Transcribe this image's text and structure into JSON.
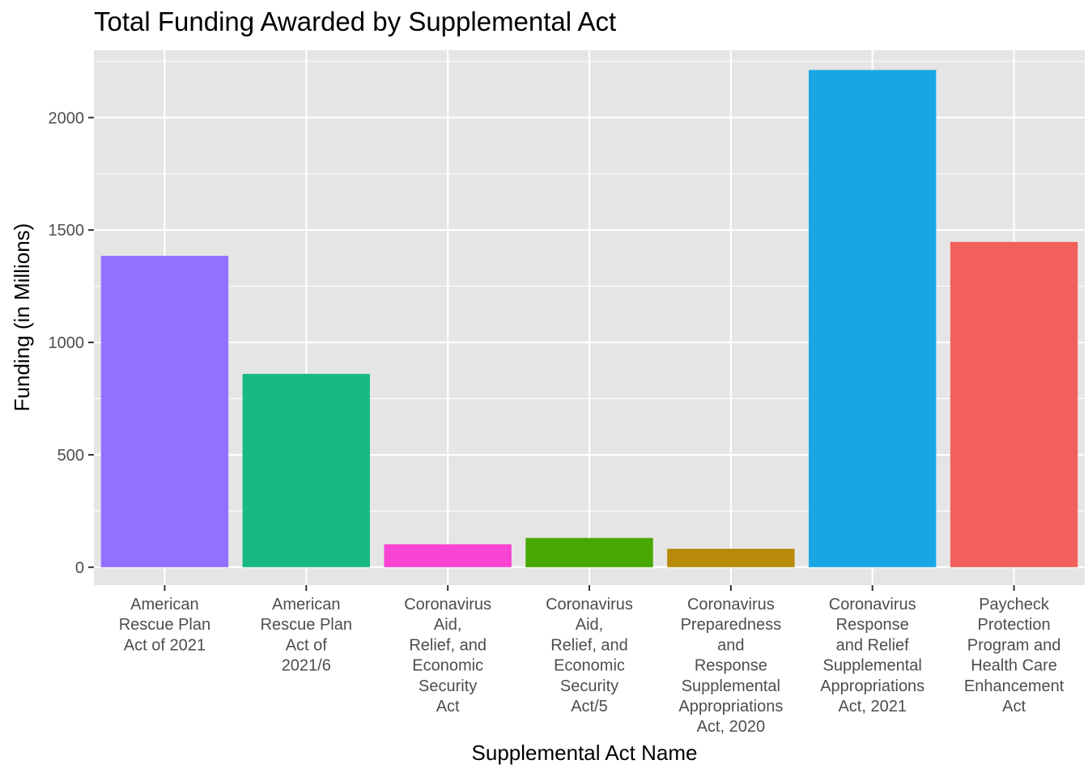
{
  "chart_data": {
    "type": "bar",
    "title": "Total Funding Awarded by Supplemental Act",
    "xlabel": "Supplemental Act Name",
    "ylabel": "Funding (in Millions)",
    "ylim": [
      -80,
      2300
    ],
    "yticks": [
      0,
      500,
      1000,
      1500,
      2000
    ],
    "grid": true,
    "categories": [
      "American Rescue Plan Act of 2021",
      "American Rescue Plan Act of 2021/6",
      "Coronavirus Aid, Relief, and Economic Security Act",
      "Coronavirus Aid, Relief, and Economic Security Act/5",
      "Coronavirus Preparedness and Response Supplemental Appropriations Act, 2020",
      "Coronavirus Response and Relief Supplemental Appropriations Act, 2021",
      "Paycheck Protection Program and Health Care Enhancement Act"
    ],
    "category_label_lines": [
      [
        "American",
        "Rescue Plan",
        "Act of 2021"
      ],
      [
        "American",
        "Rescue Plan",
        "Act of",
        "2021/6"
      ],
      [
        "Coronavirus",
        "Aid,",
        "Relief, and",
        "Economic",
        "Security",
        "Act"
      ],
      [
        "Coronavirus",
        "Aid,",
        "Relief, and",
        "Economic",
        "Security",
        "Act/5"
      ],
      [
        "Coronavirus",
        "Preparedness",
        "and",
        "Response",
        "Supplemental",
        "Appropriations",
        "Act, 2020"
      ],
      [
        "Coronavirus",
        "Response",
        "and Relief",
        "Supplemental",
        "Appropriations",
        "Act, 2021"
      ],
      [
        "Paycheck",
        "Protection",
        "Program and",
        "Health Care",
        "Enhancement",
        "Act"
      ]
    ],
    "values": [
      1385,
      860,
      102,
      130,
      82,
      2212,
      1447
    ],
    "colors": [
      "#9370FF",
      "#19B885",
      "#F943D3",
      "#47A703",
      "#B78A0A",
      "#18A6E4",
      "#F2605C"
    ],
    "legend": "none",
    "panel_background": "#E5E5E5",
    "grid_color": "#FFFFFF"
  }
}
